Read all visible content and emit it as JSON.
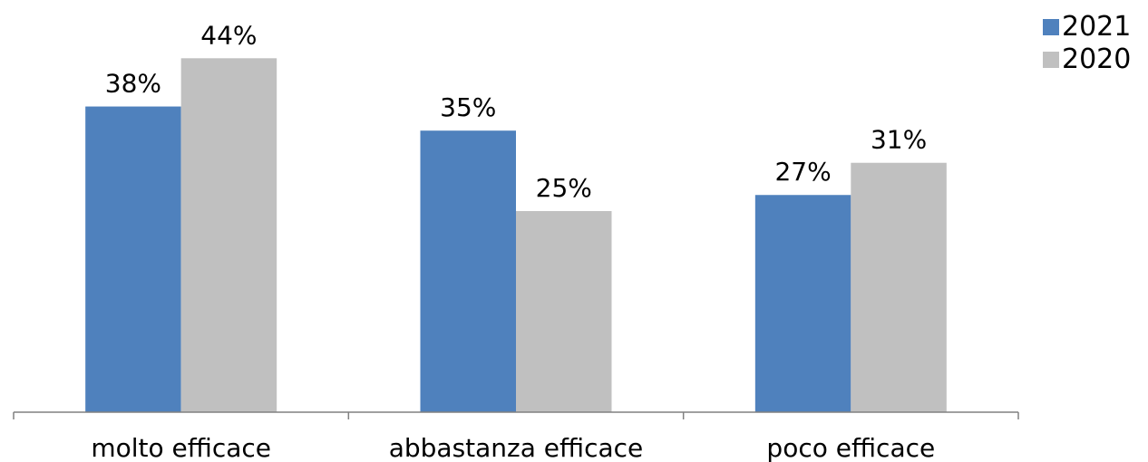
{
  "chart_data": {
    "type": "bar",
    "categories": [
      "molto efficace",
      "abbastanza efficace",
      "poco efficace"
    ],
    "series": [
      {
        "name": "2021",
        "values": [
          38,
          35,
          27
        ],
        "labels": [
          "38%",
          "35%",
          "27%"
        ],
        "color": "#4f81bd"
      },
      {
        "name": "2020",
        "values": [
          44,
          25,
          31
        ],
        "labels": [
          "44%",
          "25%",
          "31%"
        ],
        "color": "#c0c0c0"
      }
    ],
    "unit": "%",
    "ylim": [
      0,
      50
    ],
    "grid": false,
    "y_axis_visible": false,
    "legend_position": "top-right"
  }
}
